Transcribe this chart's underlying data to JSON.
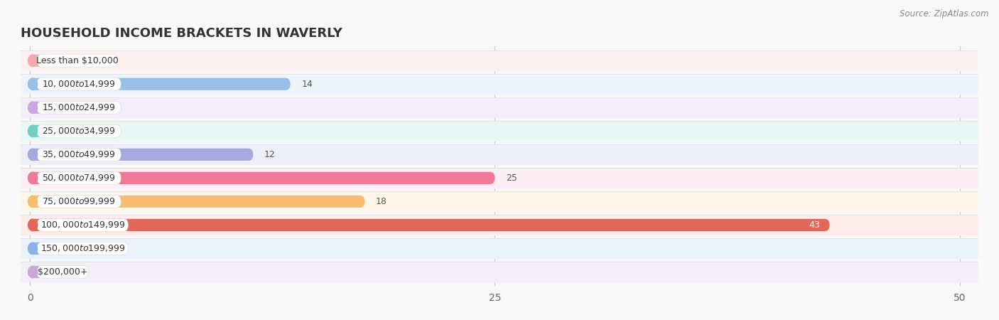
{
  "title": "HOUSEHOLD INCOME BRACKETS IN WAVERLY",
  "source": "Source: ZipAtlas.com",
  "categories": [
    "Less than $10,000",
    "$10,000 to $14,999",
    "$15,000 to $24,999",
    "$25,000 to $34,999",
    "$35,000 to $49,999",
    "$50,000 to $74,999",
    "$75,000 to $99,999",
    "$100,000 to $149,999",
    "$150,000 to $199,999",
    "$200,000+"
  ],
  "values": [
    0,
    14,
    0,
    0,
    12,
    25,
    18,
    43,
    0,
    0
  ],
  "bar_colors": [
    "#f2aaaa",
    "#98bfe8",
    "#c8a8e0",
    "#74cec0",
    "#a8a8e0",
    "#f07898",
    "#f8bc70",
    "#e06858",
    "#88b4e8",
    "#c8a8d8"
  ],
  "row_bg_colors": [
    "#fdf0f0",
    "#eef4fc",
    "#f4eefa",
    "#e8f8f4",
    "#eeeefa",
    "#fdeef4",
    "#fef6e8",
    "#feecea",
    "#eaf2fc",
    "#f4eef8"
  ],
  "xlim_max": 50,
  "xticks": [
    0,
    25,
    50
  ],
  "bar_height": 0.52,
  "fig_bg": "#f8f8f8"
}
